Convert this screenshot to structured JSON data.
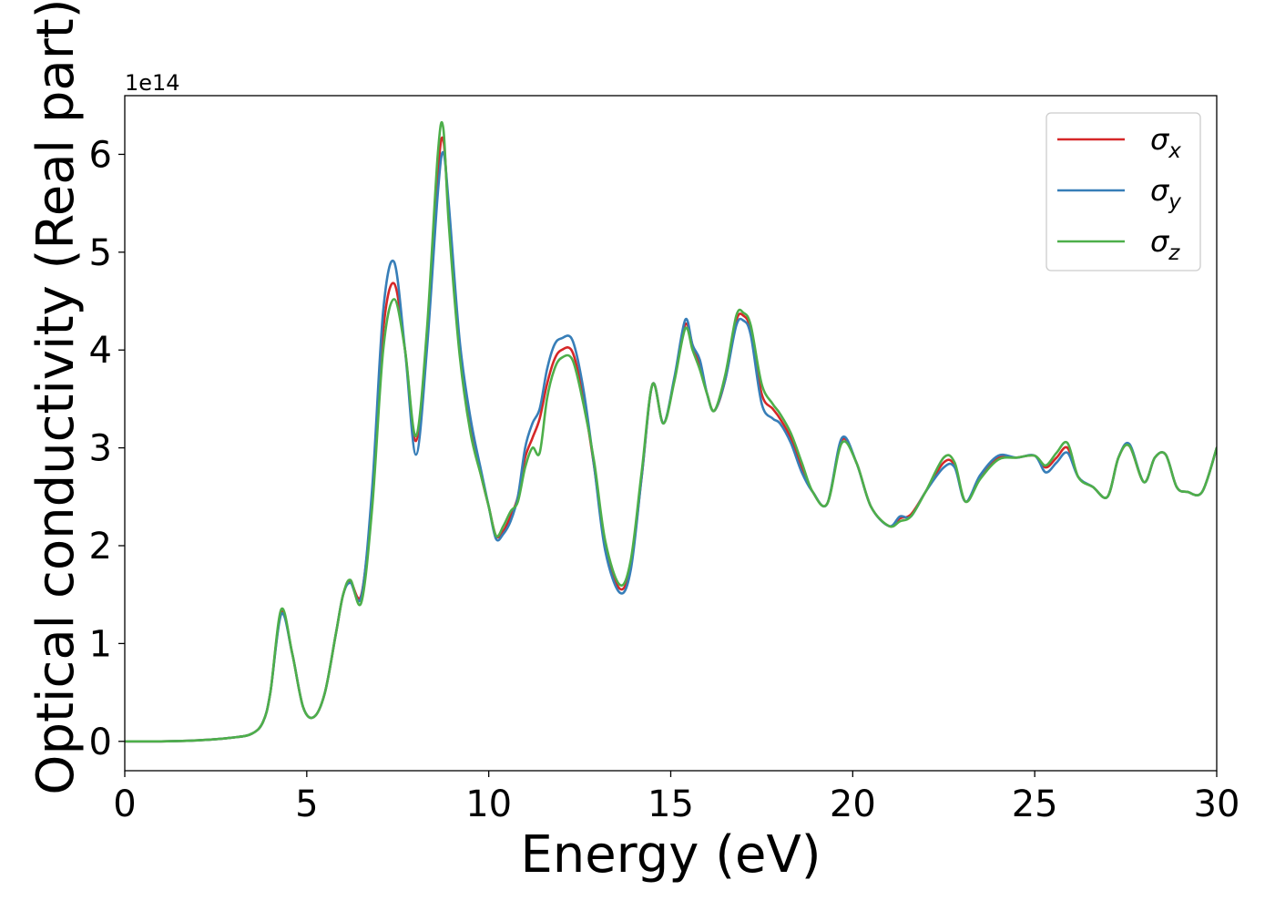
{
  "chart_data": {
    "type": "line",
    "xlabel": "Energy (eV)",
    "ylabel": "Optical conductivity (Real part)",
    "y_offset_text": "1e14",
    "y_scale": 100000000000000.0,
    "xlim": [
      0,
      30
    ],
    "ylim": [
      -0.3,
      6.6
    ],
    "xticks": [
      0,
      5,
      10,
      15,
      20,
      25,
      30
    ],
    "xtick_labels": [
      "0",
      "5",
      "10",
      "15",
      "20",
      "25",
      "30"
    ],
    "yticks": [
      0,
      1,
      2,
      3,
      4,
      5,
      6
    ],
    "ytick_labels": [
      "0",
      "1",
      "2",
      "3",
      "4",
      "5",
      "6"
    ],
    "grid": false,
    "legend_position": "top-right",
    "series": [
      {
        "name": "σx",
        "name_base": "σ",
        "name_sub": "x",
        "color": "#d62728",
        "x": [
          0,
          1,
          2,
          3,
          3.5,
          3.8,
          4.0,
          4.3,
          4.6,
          4.9,
          5.2,
          5.5,
          5.8,
          6.0,
          6.2,
          6.5,
          6.8,
          7.1,
          7.4,
          7.7,
          8.0,
          8.3,
          8.6,
          8.75,
          8.9,
          9.2,
          9.5,
          9.8,
          10.0,
          10.2,
          10.4,
          10.6,
          10.8,
          11.0,
          11.2,
          11.4,
          11.6,
          11.8,
          12.0,
          12.3,
          12.6,
          12.9,
          13.2,
          13.6,
          13.9,
          14.2,
          14.5,
          14.8,
          15.1,
          15.4,
          15.6,
          15.8,
          16.0,
          16.2,
          16.5,
          16.8,
          17.0,
          17.2,
          17.5,
          17.8,
          18.0,
          18.3,
          18.6,
          18.9,
          19.3,
          19.7,
          20.1,
          20.5,
          21.0,
          21.3,
          21.6,
          22.0,
          22.5,
          22.8,
          23.1,
          23.5,
          24.0,
          24.5,
          25.0,
          25.3,
          25.6,
          25.9,
          26.2,
          26.6,
          27.0,
          27.3,
          27.6,
          28.0,
          28.3,
          28.6,
          28.9,
          29.2,
          29.6,
          30.0
        ],
        "y": [
          0.0,
          0.0,
          0.01,
          0.04,
          0.08,
          0.2,
          0.5,
          1.32,
          0.9,
          0.35,
          0.25,
          0.5,
          1.1,
          1.5,
          1.63,
          1.5,
          2.5,
          4.2,
          4.68,
          4.0,
          3.07,
          4.1,
          5.8,
          6.15,
          5.4,
          4.0,
          3.2,
          2.7,
          2.4,
          2.1,
          2.15,
          2.3,
          2.5,
          2.9,
          3.1,
          3.3,
          3.65,
          3.9,
          4.0,
          3.98,
          3.5,
          2.8,
          2.0,
          1.56,
          1.8,
          2.7,
          3.65,
          3.25,
          3.7,
          4.26,
          4.05,
          3.85,
          3.55,
          3.38,
          3.7,
          4.3,
          4.35,
          4.2,
          3.55,
          3.4,
          3.3,
          3.1,
          2.8,
          2.55,
          2.43,
          3.08,
          2.85,
          2.4,
          2.2,
          2.28,
          2.32,
          2.55,
          2.85,
          2.82,
          2.45,
          2.7,
          2.9,
          2.9,
          2.92,
          2.8,
          2.9,
          3.0,
          2.7,
          2.6,
          2.5,
          2.9,
          3.02,
          2.65,
          2.9,
          2.93,
          2.6,
          2.55,
          2.55,
          3.0
        ]
      },
      {
        "name": "σy",
        "name_base": "σ",
        "name_sub": "y",
        "color": "#377eb8",
        "x": [
          0,
          1,
          2,
          3,
          3.5,
          3.8,
          4.0,
          4.3,
          4.6,
          4.9,
          5.2,
          5.5,
          5.8,
          6.0,
          6.2,
          6.5,
          6.8,
          7.1,
          7.4,
          7.7,
          8.0,
          8.3,
          8.6,
          8.75,
          8.9,
          9.2,
          9.5,
          9.8,
          10.0,
          10.2,
          10.4,
          10.6,
          10.8,
          11.0,
          11.2,
          11.4,
          11.6,
          11.8,
          12.0,
          12.3,
          12.6,
          12.9,
          13.2,
          13.6,
          13.9,
          14.2,
          14.5,
          14.8,
          15.1,
          15.4,
          15.6,
          15.8,
          16.0,
          16.2,
          16.5,
          16.8,
          17.0,
          17.2,
          17.5,
          17.8,
          18.0,
          18.3,
          18.6,
          18.9,
          19.3,
          19.7,
          20.1,
          20.5,
          21.0,
          21.3,
          21.6,
          22.0,
          22.5,
          22.8,
          23.1,
          23.5,
          24.0,
          24.5,
          25.0,
          25.3,
          25.6,
          25.9,
          26.2,
          26.6,
          27.0,
          27.3,
          27.6,
          28.0,
          28.3,
          28.6,
          28.9,
          29.2,
          29.6,
          30.0
        ],
        "y": [
          0.0,
          0.0,
          0.01,
          0.04,
          0.08,
          0.2,
          0.5,
          1.3,
          0.9,
          0.35,
          0.25,
          0.5,
          1.1,
          1.5,
          1.62,
          1.48,
          2.6,
          4.4,
          4.9,
          4.0,
          2.93,
          4.0,
          5.6,
          6.02,
          5.5,
          4.1,
          3.3,
          2.75,
          2.4,
          2.07,
          2.12,
          2.25,
          2.5,
          3.0,
          3.25,
          3.4,
          3.8,
          4.05,
          4.12,
          4.1,
          3.6,
          2.8,
          1.95,
          1.52,
          1.75,
          2.7,
          3.65,
          3.25,
          3.72,
          4.31,
          4.05,
          3.9,
          3.55,
          3.38,
          3.7,
          4.25,
          4.3,
          4.15,
          3.45,
          3.3,
          3.25,
          3.05,
          2.75,
          2.55,
          2.43,
          3.1,
          2.85,
          2.4,
          2.2,
          2.3,
          2.3,
          2.55,
          2.8,
          2.8,
          2.45,
          2.72,
          2.92,
          2.9,
          2.92,
          2.75,
          2.85,
          2.95,
          2.7,
          2.6,
          2.5,
          2.9,
          3.04,
          2.65,
          2.9,
          2.93,
          2.6,
          2.55,
          2.55,
          3.0
        ]
      },
      {
        "name": "σz",
        "name_base": "σ",
        "name_sub": "z",
        "color": "#4daf4a",
        "x": [
          0,
          1,
          2,
          3,
          3.5,
          3.8,
          4.0,
          4.3,
          4.6,
          4.9,
          5.2,
          5.5,
          5.8,
          6.0,
          6.2,
          6.5,
          6.8,
          7.1,
          7.4,
          7.7,
          8.0,
          8.3,
          8.6,
          8.75,
          8.9,
          9.2,
          9.5,
          9.8,
          10.0,
          10.2,
          10.4,
          10.6,
          10.8,
          11.0,
          11.2,
          11.4,
          11.6,
          11.8,
          12.0,
          12.3,
          12.6,
          12.9,
          13.2,
          13.6,
          13.9,
          14.2,
          14.5,
          14.8,
          15.1,
          15.4,
          15.6,
          15.8,
          16.0,
          16.2,
          16.5,
          16.8,
          17.0,
          17.2,
          17.5,
          17.8,
          18.0,
          18.3,
          18.6,
          18.9,
          19.3,
          19.7,
          20.1,
          20.5,
          21.0,
          21.3,
          21.6,
          22.0,
          22.5,
          22.8,
          23.1,
          23.5,
          24.0,
          24.5,
          25.0,
          25.3,
          25.6,
          25.9,
          26.2,
          26.6,
          27.0,
          27.3,
          27.6,
          28.0,
          28.3,
          28.6,
          28.9,
          29.2,
          29.6,
          30.0
        ],
        "y": [
          0.0,
          0.0,
          0.01,
          0.04,
          0.08,
          0.2,
          0.5,
          1.35,
          0.9,
          0.35,
          0.25,
          0.5,
          1.1,
          1.5,
          1.65,
          1.42,
          2.4,
          4.0,
          4.52,
          4.0,
          3.12,
          4.2,
          6.0,
          6.27,
          5.3,
          3.95,
          3.15,
          2.7,
          2.4,
          2.1,
          2.2,
          2.35,
          2.45,
          2.8,
          3.0,
          2.95,
          3.5,
          3.8,
          3.92,
          3.9,
          3.45,
          2.85,
          2.05,
          1.6,
          1.85,
          2.75,
          3.65,
          3.25,
          3.68,
          4.22,
          4.0,
          3.8,
          3.55,
          3.38,
          3.75,
          4.35,
          4.38,
          4.25,
          3.65,
          3.45,
          3.35,
          3.15,
          2.85,
          2.55,
          2.43,
          3.05,
          2.85,
          2.4,
          2.2,
          2.25,
          2.3,
          2.55,
          2.9,
          2.85,
          2.45,
          2.68,
          2.88,
          2.9,
          2.92,
          2.82,
          2.95,
          3.05,
          2.7,
          2.6,
          2.5,
          2.9,
          3.02,
          2.65,
          2.9,
          2.93,
          2.6,
          2.55,
          2.55,
          3.0
        ]
      }
    ]
  }
}
